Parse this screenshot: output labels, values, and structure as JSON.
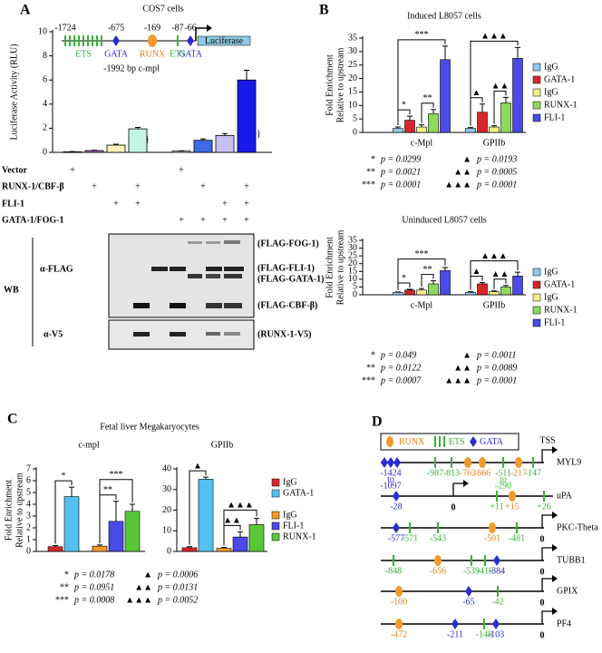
{
  "panels": [
    "A",
    "B",
    "C",
    "D"
  ],
  "chart_data": [
    {
      "type": "bar",
      "title": "COS7 cells",
      "ylabel": "Luciferase Activity (RLU)",
      "values": [
        0.05,
        0.15,
        0.6,
        1.95,
        0.1,
        1.0,
        1.4,
        6.0
      ],
      "errors": [
        0.02,
        0.03,
        0.08,
        0.12,
        0.03,
        0.12,
        0.15,
        0.8
      ],
      "colors": [
        "#ffffff",
        "#b070d0",
        "#fff6b8",
        "#c4f4e4",
        "#ffffff",
        "#3c6be8",
        "#c8c0f0",
        "#1a1ae8"
      ],
      "ylim": [
        0,
        10
      ],
      "yticks": [
        0,
        2,
        4,
        6,
        8,
        10
      ]
    },
    {
      "type": "bar",
      "title": "Induced L8057 cells",
      "ylabel": [
        "Fold Enrichment",
        "Relative to upstream"
      ],
      "categories": [
        "c-Mpl",
        "GPIIb"
      ],
      "series": [
        {
          "name": "IgG",
          "color": "#8ec9ec",
          "values": [
            1.5,
            1.5
          ],
          "errors": [
            0.5,
            0.3
          ]
        },
        {
          "name": "GATA-1",
          "color": "#d7262b",
          "values": [
            4.5,
            7.5
          ],
          "errors": [
            1.5,
            3
          ]
        },
        {
          "name": "IgG",
          "color": "#f2ef88",
          "values": [
            2,
            2
          ],
          "errors": [
            0.8,
            0.5
          ]
        },
        {
          "name": "RUNX-1",
          "color": "#8fd95c",
          "values": [
            7,
            11
          ],
          "errors": [
            1.5,
            2
          ]
        },
        {
          "name": "FLI-1",
          "color": "#4a4ae6",
          "values": [
            27,
            27.5
          ],
          "errors": [
            5,
            4
          ]
        }
      ],
      "ylim": [
        0,
        35
      ],
      "yticks": [
        0,
        5,
        10,
        15,
        20,
        25,
        30,
        35
      ],
      "brackets": [
        [
          "*",
          "**",
          "***"
        ],
        [
          "▲",
          "▲▲",
          "▲▲▲"
        ]
      ],
      "stats": [
        [
          {
            "symbol": "*",
            "text": "p = 0.0299"
          },
          {
            "symbol": "**",
            "text": "p = 0.0021"
          },
          {
            "symbol": "***",
            "text": "p = 0.0001"
          }
        ],
        [
          {
            "symbol": "▲",
            "text": "p = 0.0193"
          },
          {
            "symbol": "▲▲",
            "text": "p = 0.0005"
          },
          {
            "symbol": "▲▲▲",
            "text": "p = 0.0001"
          }
        ]
      ]
    },
    {
      "type": "bar",
      "title": "Uninduced L8057 cells",
      "ylabel": [
        "Fold Enrichment",
        "Relative to upstream"
      ],
      "categories": [
        "c-Mpl",
        "GPIIb"
      ],
      "series": [
        {
          "name": "IgG",
          "color": "#8ec9ec",
          "values": [
            1.5,
            1.5
          ],
          "errors": [
            0.3,
            0.5
          ]
        },
        {
          "name": "GATA-1",
          "color": "#d7262b",
          "values": [
            3,
            7
          ],
          "errors": [
            0.5,
            0.8
          ]
        },
        {
          "name": "IgG",
          "color": "#f2ef88",
          "values": [
            3,
            2
          ],
          "errors": [
            1,
            0.5
          ]
        },
        {
          "name": "RUNX-1",
          "color": "#8fd95c",
          "values": [
            7,
            5
          ],
          "errors": [
            2,
            1
          ]
        },
        {
          "name": "FLI-1",
          "color": "#4a4ae6",
          "values": [
            15.5,
            12
          ],
          "errors": [
            2,
            2.5
          ]
        }
      ],
      "ylim": [
        0,
        35
      ],
      "yticks": [
        0,
        5,
        10,
        15,
        20,
        25,
        30,
        35
      ],
      "brackets": [
        [
          "*",
          "**",
          "***"
        ],
        [
          "▲",
          "▲▲",
          "▲▲▲"
        ]
      ],
      "stats": [
        [
          {
            "symbol": "*",
            "text": "p = 0.049"
          },
          {
            "symbol": "**",
            "text": "p = 0.0122"
          },
          {
            "symbol": "***",
            "text": "p = 0.0007"
          }
        ],
        [
          {
            "symbol": "▲",
            "text": "p = 0.0011"
          },
          {
            "symbol": "▲▲",
            "text": "p = 0.0089"
          },
          {
            "symbol": "▲▲▲",
            "text": "p = 0.0001"
          }
        ]
      ]
    },
    {
      "type": "bar",
      "title": "c-mpl",
      "ylabel": [
        "Fold Enrichment",
        "Relative to upstream"
      ],
      "series": [
        {
          "name": "IgG",
          "color": "#d7262b",
          "values": [
            0.4,
            null
          ],
          "errors": [
            0.1,
            null
          ]
        },
        {
          "name": "GATA-1",
          "color": "#55c2ee",
          "values": [
            4.65,
            null
          ],
          "errors": [
            0.8,
            null
          ]
        },
        {
          "name": "IgG",
          "color": "#f39a2c",
          "values": [
            null,
            0.45
          ],
          "errors": [
            null,
            0.1
          ]
        },
        {
          "name": "FLI-1",
          "color": "#4a4ae6",
          "values": [
            null,
            2.55
          ],
          "errors": [
            null,
            1.7
          ]
        },
        {
          "name": "RUNX-1",
          "color": "#58c838",
          "values": [
            null,
            3.4
          ],
          "errors": [
            null,
            0.6
          ]
        }
      ],
      "ylim": [
        0,
        7
      ],
      "yticks": [
        0,
        1,
        2,
        3,
        4,
        5,
        6,
        7
      ],
      "brackets": [
        [
          "*"
        ],
        [
          "**",
          "***"
        ]
      ],
      "stats": [
        [
          {
            "symbol": "*",
            "text": "p = 0.0178"
          },
          {
            "symbol": "**",
            "text": "p = 0.0951"
          },
          {
            "symbol": "***",
            "text": "p = 0.0008"
          }
        ]
      ]
    },
    {
      "type": "bar",
      "title": "GPIIb",
      "series": [
        {
          "color": "#d7262b",
          "values": [
            1.8,
            null
          ],
          "errors": [
            0.5,
            null
          ]
        },
        {
          "color": "#55c2ee",
          "values": [
            35,
            null
          ],
          "errors": [
            1,
            null
          ]
        },
        {
          "color": "#f39a2c",
          "values": [
            null,
            1.5
          ],
          "errors": [
            null,
            0.5
          ]
        },
        {
          "color": "#4a4ae6",
          "values": [
            null,
            7
          ],
          "errors": [
            null,
            2.5
          ]
        },
        {
          "color": "#58c838",
          "values": [
            null,
            13
          ],
          "errors": [
            null,
            3
          ]
        }
      ],
      "ylim": [
        0,
        40
      ],
      "yticks": [
        0,
        10,
        20,
        30,
        40
      ],
      "brackets": [
        [
          "▲"
        ],
        [
          "▲▲",
          "▲▲▲"
        ]
      ],
      "stats": [
        [
          {
            "symbol": "▲",
            "text": "p = 0.0006"
          },
          {
            "symbol": "▲▲",
            "text": "p = 0.0131"
          },
          {
            "symbol": "▲▲▲",
            "text": "p = 0.0052"
          }
        ]
      ]
    }
  ],
  "conditions": [
    {
      "label": "Vector",
      "marks": [
        "+",
        null,
        null,
        null,
        "+",
        null,
        null,
        null
      ]
    },
    {
      "label": "RUNX-1/CBF-β",
      "marks": [
        null,
        "+",
        null,
        "+",
        null,
        "+",
        null,
        "+"
      ]
    },
    {
      "label": "FLI-1",
      "marks": [
        null,
        null,
        "+",
        "+",
        null,
        null,
        "+",
        "+"
      ]
    },
    {
      "label": "GATA-1/FOG-1",
      "marks": [
        null,
        null,
        null,
        null,
        "+",
        "+",
        "+",
        "+"
      ]
    }
  ],
  "promoter": {
    "sites": [
      {
        "position": "-1724",
        "name": "ETS"
      },
      {
        "position": "-675",
        "name": "GATA"
      },
      {
        "position": "-169",
        "name": "RUNX"
      },
      {
        "position": "-87",
        "name": "ETS"
      },
      {
        "position": "-66",
        "name": "GATA"
      }
    ],
    "reporter": "Luciferase",
    "caption": "-1992 bp c-mpl"
  },
  "blot": {
    "method": "WB",
    "antibodies": [
      "α-FLAG",
      "α-V5"
    ],
    "bands": [
      "(FLAG-FOG-1)",
      "(FLAG-FLI-1)",
      "(FLAG-GATA-1)",
      "(FLAG-CBF-β)",
      "(RUNX-1-V5)"
    ]
  },
  "panel_c": {
    "title": "Fetal liver Megakaryocytes"
  },
  "promoter_map": {
    "legend": [
      "RUNX",
      "ETS",
      "GATA"
    ],
    "genes": [
      {
        "name": "MYL9",
        "tss": "TSS",
        "sites": [
          {
            "type": "GATA",
            "label": [
              "-1424",
              "to",
              "-1097"
            ]
          },
          {
            "type": "ETS",
            "label": "-987"
          },
          {
            "type": "ETS",
            "label": "-813"
          },
          {
            "type": "RUNX",
            "label": "-762"
          },
          {
            "type": "RUNX",
            "label": "-666"
          },
          {
            "type": "ETS",
            "label": [
              "-511",
              "to",
              "-290"
            ]
          },
          {
            "type": "RUNX",
            "label": "-217"
          },
          {
            "type": "ETS",
            "label": "-147"
          }
        ]
      },
      {
        "name": "uPA",
        "start": "0",
        "sites": [
          {
            "type": "GATA",
            "label": "-28"
          },
          {
            "type": "ETS",
            "label": "+11"
          },
          {
            "type": "RUNX",
            "label": "+15"
          },
          {
            "type": "ETS",
            "label": "+26"
          }
        ]
      },
      {
        "name": "PKC-Theta",
        "start": "0",
        "sites": [
          {
            "type": "GATA",
            "label": "-577"
          },
          {
            "type": "ETS",
            "label": "-571"
          },
          {
            "type": "ETS",
            "label": "-543"
          },
          {
            "type": "RUNX",
            "label": "-501"
          },
          {
            "type": "ETS",
            "label": "-481"
          }
        ]
      },
      {
        "name": "TUBB1",
        "start": "0",
        "sites": [
          {
            "type": "ETS",
            "label": "-848"
          },
          {
            "type": "RUNX",
            "label": "-656"
          },
          {
            "type": "ETS",
            "label": "-539"
          },
          {
            "type": "ETS",
            "label": "-419"
          },
          {
            "type": "GATA",
            "label": "-384"
          }
        ]
      },
      {
        "name": "GPIX",
        "start": "0",
        "sites": [
          {
            "type": "RUNX",
            "label": "-100"
          },
          {
            "type": "GATA",
            "label": "-65"
          },
          {
            "type": "ETS",
            "label": "-42"
          }
        ]
      },
      {
        "name": "PF4",
        "start": "0",
        "sites": [
          {
            "type": "RUNX",
            "label": "-472"
          },
          {
            "type": "GATA",
            "label": "-211"
          },
          {
            "type": "ETS",
            "label": "-148"
          },
          {
            "type": "GATA",
            "label": "-103"
          }
        ]
      }
    ]
  }
}
